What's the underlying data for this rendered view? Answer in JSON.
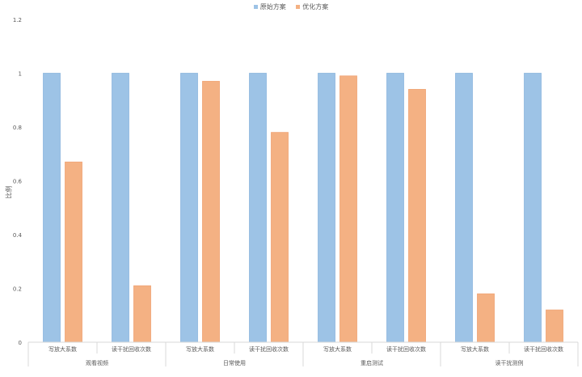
{
  "chart_data": {
    "type": "bar",
    "title": "",
    "ylabel": "比例",
    "ylim": [
      0,
      1.2
    ],
    "yticks": [
      "0",
      "0.2",
      "0.4",
      "0.6",
      "0.8",
      "1",
      "1.2"
    ],
    "ytick_values": [
      0,
      0.2,
      0.4,
      0.6,
      0.8,
      1.0,
      1.2
    ],
    "groups": [
      {
        "label": "观看视频",
        "categories": [
          "写放大系数",
          "读干扰回收次数"
        ]
      },
      {
        "label": "日常使用",
        "categories": [
          "写放大系数",
          "读干扰回收次数"
        ]
      },
      {
        "label": "重启测试",
        "categories": [
          "写放大系数",
          "读干扰回收次数"
        ]
      },
      {
        "label": "读干扰测例",
        "categories": [
          "写放大系数",
          "读干扰回收次数"
        ]
      }
    ],
    "series": [
      {
        "name": "原始方案",
        "color": "#9DC3E6",
        "values": [
          1,
          1,
          1,
          1,
          1,
          1,
          1,
          1
        ]
      },
      {
        "name": "优化方案",
        "color": "#F4B183",
        "values": [
          0.67,
          0.21,
          0.97,
          0.78,
          0.99,
          0.94,
          0.18,
          0.12
        ]
      }
    ],
    "grid": false,
    "legend_position": "top-center"
  }
}
